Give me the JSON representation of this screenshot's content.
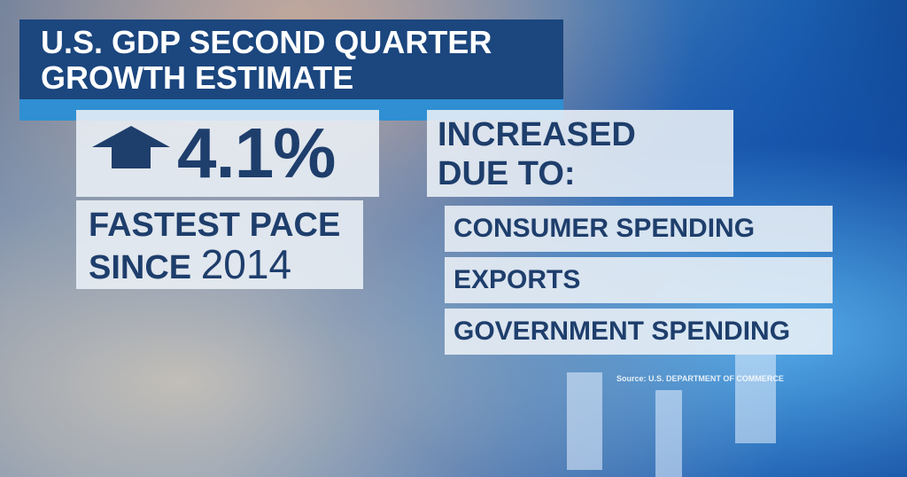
{
  "header": {
    "title_lines": [
      "U.S. GDP SECOND QUARTER",
      "GROWTH ESTIMATE"
    ]
  },
  "headline": {
    "value": "4.1%",
    "pace_lines": [
      "FASTEST PACE",
      "SINCE"
    ],
    "year": "2014"
  },
  "reasons": {
    "heading_lines": [
      "INCREASED",
      "DUE TO:"
    ],
    "items": [
      "CONSUMER SPENDING",
      "EXPORTS",
      "GOVERNMENT SPENDING"
    ]
  },
  "footer": {
    "source": "Source: U.S. DEPARTMENT OF COMMERCE"
  }
}
